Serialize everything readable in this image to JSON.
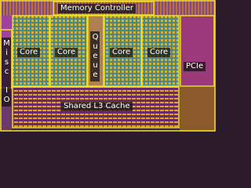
{
  "labels": {
    "memory_controller": "Memory Controller",
    "misc_io": "Misc IO",
    "cores": [
      "Core",
      "Core",
      "Core",
      "Core"
    ],
    "queue": "Queue",
    "pcie": "PCIe",
    "l3_cache": "Shared L3 Cache"
  }
}
